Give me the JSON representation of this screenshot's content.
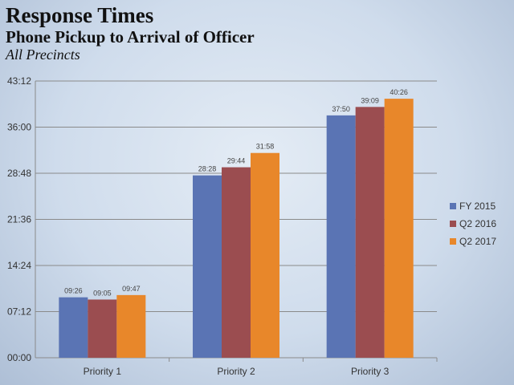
{
  "header": {
    "title": "Response Times",
    "subtitle": "Phone Pickup to Arrival of Officer",
    "scope": "All Precincts"
  },
  "chart_data": {
    "type": "bar",
    "categories": [
      "Priority 1",
      "Priority 2",
      "Priority 3"
    ],
    "series": [
      {
        "name": "FY 2015",
        "color": "#5a74b4",
        "values": [
          566,
          1708,
          2270
        ],
        "labels": [
          "09:26",
          "28:28",
          "37:50"
        ]
      },
      {
        "name": "Q2 2016",
        "color": "#9b4d50",
        "values": [
          545,
          1784,
          2349
        ],
        "labels": [
          "09:05",
          "29:44",
          "39:09"
        ]
      },
      {
        "name": "Q2 2017",
        "color": "#e8872a",
        "values": [
          587,
          1918,
          2426
        ],
        "labels": [
          "09:47",
          "31:58",
          "40:26"
        ]
      }
    ],
    "value_unit": "seconds",
    "ylim": [
      0,
      2592
    ],
    "yticks": [
      {
        "value": 0,
        "label": "00:00"
      },
      {
        "value": 432,
        "label": "07:12"
      },
      {
        "value": 864,
        "label": "14:24"
      },
      {
        "value": 1296,
        "label": "21:36"
      },
      {
        "value": 1728,
        "label": "28:48"
      },
      {
        "value": 2160,
        "label": "36:00"
      },
      {
        "value": 2592,
        "label": "43:12"
      }
    ],
    "grid": true,
    "legend": "right",
    "title": "",
    "xlabel": "",
    "ylabel": ""
  }
}
